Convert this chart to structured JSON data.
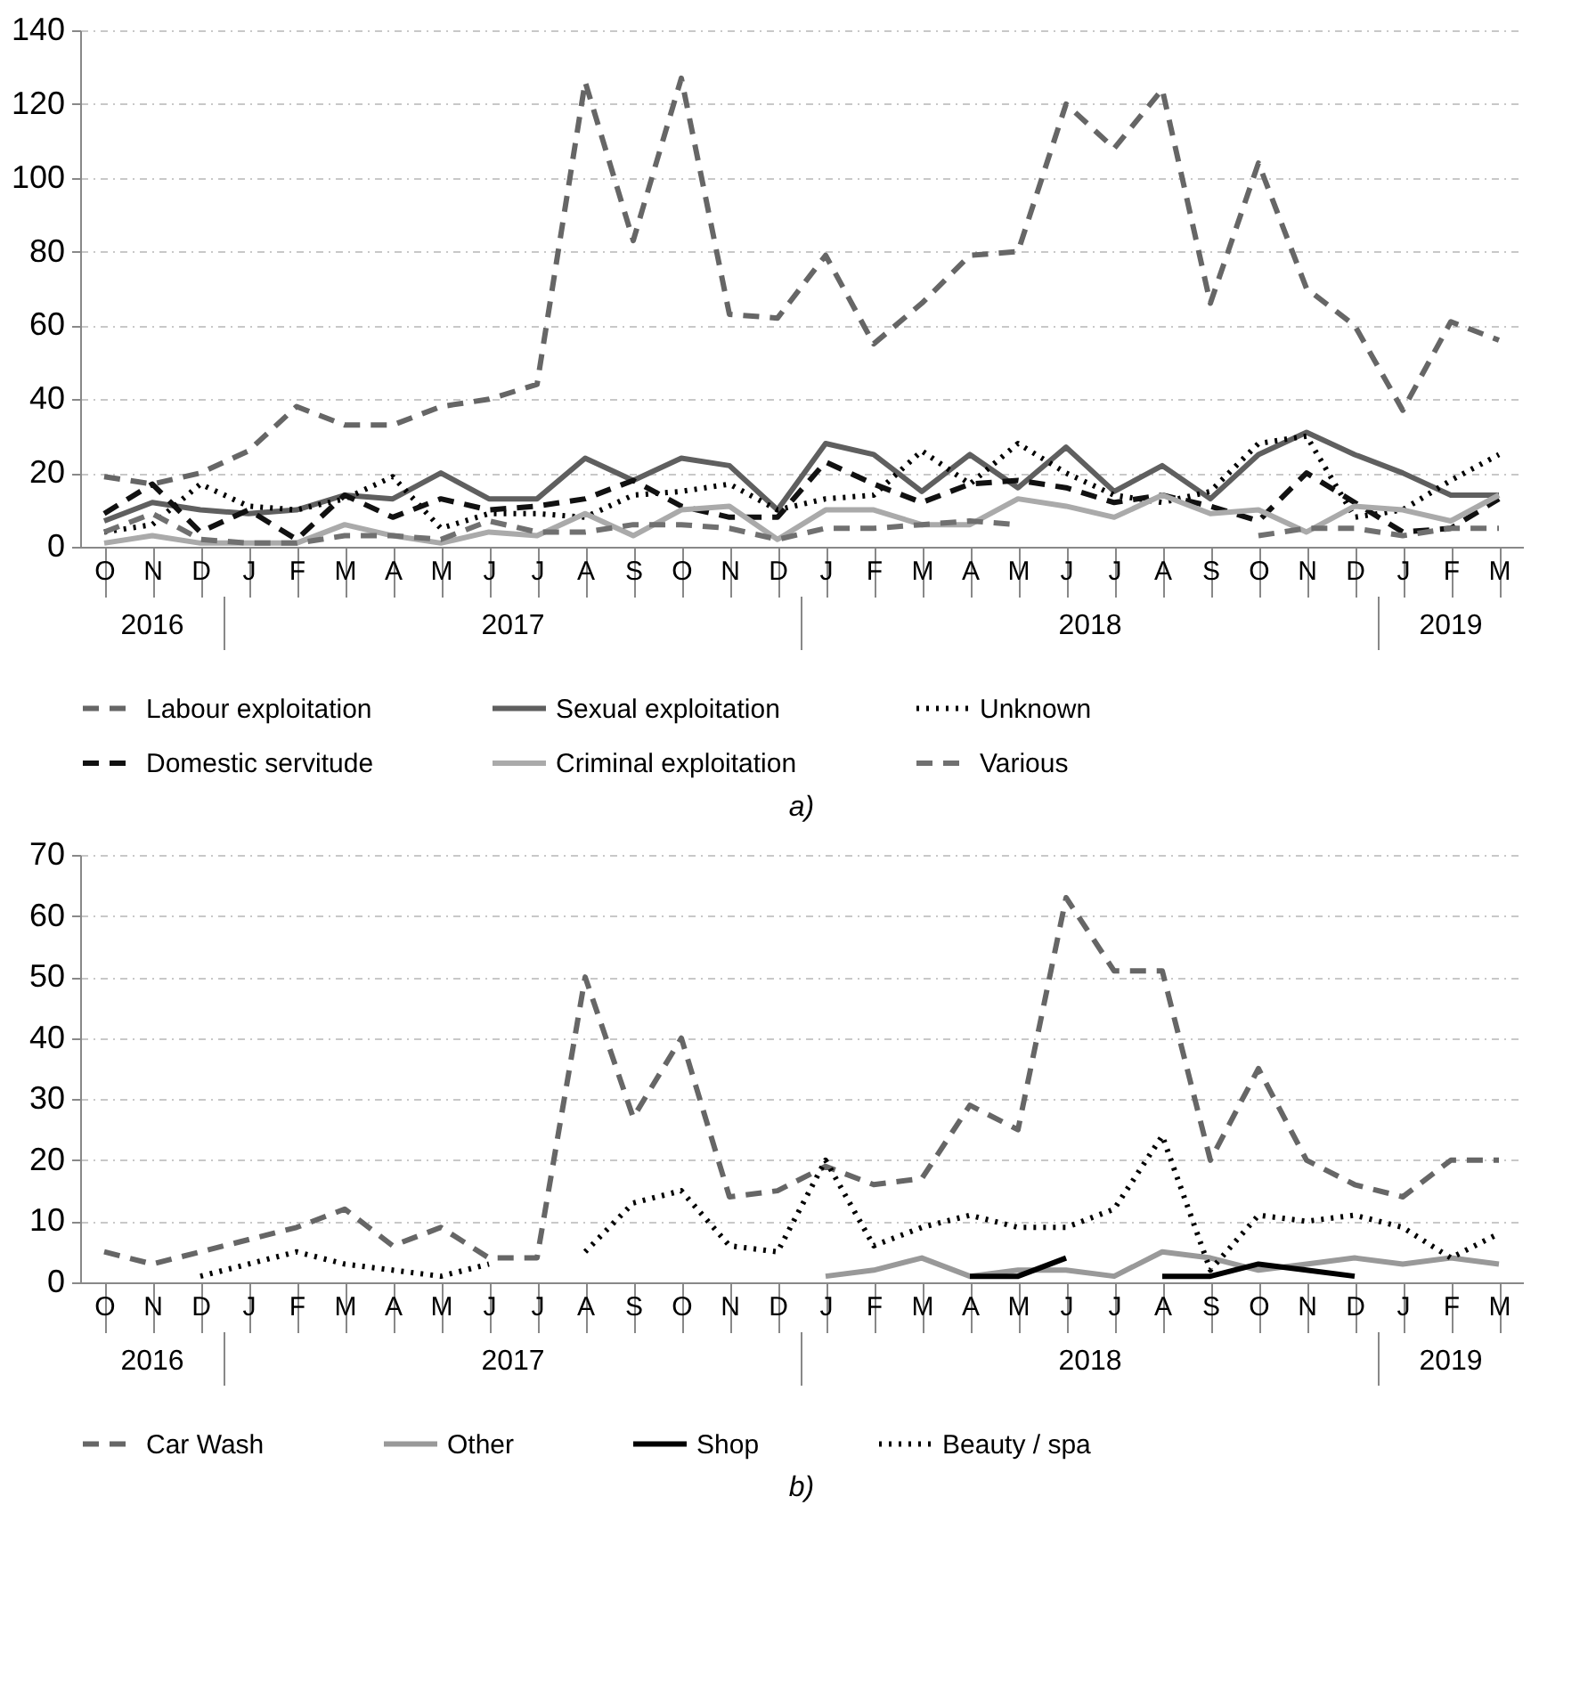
{
  "chart_data": [
    {
      "type": "line",
      "categories": [
        "O",
        "N",
        "D",
        "J",
        "F",
        "M",
        "A",
        "M",
        "J",
        "J",
        "A",
        "S",
        "O",
        "N",
        "D",
        "J",
        "F",
        "M",
        "A",
        "M",
        "J",
        "J",
        "A",
        "S",
        "O",
        "N",
        "D",
        "J",
        "F",
        "M"
      ],
      "ylim": [
        0,
        140
      ],
      "yticks": [
        0,
        20,
        40,
        60,
        80,
        100,
        120,
        140
      ],
      "grid": "y",
      "legend": "bottom",
      "series": [
        {
          "name": "Labour exploitation",
          "color": "#666666",
          "line_style": "dashed",
          "values": [
            19,
            17,
            20,
            26,
            38,
            33,
            33,
            38,
            40,
            44,
            126,
            83,
            127,
            63,
            62,
            79,
            55,
            66,
            79,
            80,
            120,
            108,
            124,
            66,
            104,
            70,
            60,
            37,
            61,
            56
          ]
        },
        {
          "name": "Sexual exploitation",
          "color": "#5f5f5f",
          "line_style": "solid",
          "values": [
            7,
            12,
            10,
            9,
            10,
            14,
            13,
            20,
            13,
            13,
            24,
            18,
            24,
            22,
            10,
            28,
            25,
            15,
            25,
            16,
            27,
            15,
            22,
            13,
            25,
            31,
            25,
            20,
            14,
            14
          ]
        },
        {
          "name": "Unknown",
          "color": "#000000",
          "line_style": "dotted",
          "values": [
            4,
            6,
            17,
            11,
            10,
            13,
            19,
            5,
            9,
            9,
            8,
            14,
            15,
            17,
            10,
            13,
            14,
            26,
            17,
            28,
            20,
            14,
            12,
            15,
            28,
            30,
            8,
            10,
            18,
            25
          ]
        },
        {
          "name": "Domestic servitude",
          "color": "#111111",
          "line_style": "dashed",
          "values": [
            9,
            17,
            4,
            10,
            2,
            14,
            8,
            13,
            10,
            11,
            13,
            18,
            11,
            8,
            8,
            23,
            17,
            12,
            17,
            18,
            16,
            12,
            14,
            11,
            7,
            20,
            12,
            4,
            5,
            13
          ]
        },
        {
          "name": "Criminal exploitation",
          "color": "#aaaaaa",
          "line_style": "solid",
          "values": [
            1,
            3,
            1,
            1,
            1,
            6,
            3,
            1,
            4,
            3,
            9,
            3,
            10,
            11,
            2,
            10,
            10,
            6,
            6,
            13,
            11,
            8,
            14,
            9,
            10,
            4,
            11,
            10,
            7,
            14
          ]
        },
        {
          "name": "Various",
          "color": "#707070",
          "line_style": "dashed",
          "values": [
            4,
            9,
            2,
            1,
            1,
            3,
            3,
            2,
            7,
            4,
            4,
            6,
            6,
            5,
            2,
            5,
            5,
            6,
            7,
            6,
            null,
            null,
            null,
            null,
            3,
            5,
            5,
            3,
            5,
            5
          ]
        }
      ],
      "annotations": [
        "2016",
        "2017",
        "2018",
        "2019",
        "a)"
      ]
    },
    {
      "type": "line",
      "categories": [
        "O",
        "N",
        "D",
        "J",
        "F",
        "M",
        "A",
        "M",
        "J",
        "J",
        "A",
        "S",
        "O",
        "N",
        "D",
        "J",
        "F",
        "M",
        "A",
        "M",
        "J",
        "J",
        "A",
        "S",
        "O",
        "N",
        "D",
        "J",
        "F",
        "M"
      ],
      "ylim": [
        0,
        70
      ],
      "yticks": [
        0,
        10,
        20,
        30,
        40,
        50,
        60,
        70
      ],
      "grid": "y",
      "legend": "bottom",
      "series": [
        {
          "name": "Car Wash",
          "color": "#666666",
          "line_style": "dashed",
          "values": [
            5,
            3,
            5,
            7,
            9,
            12,
            6,
            9,
            4,
            4,
            50,
            27,
            40,
            14,
            15,
            19,
            16,
            17,
            29,
            25,
            63,
            51,
            51,
            20,
            35,
            20,
            16,
            14,
            20,
            20
          ]
        },
        {
          "name": "Other",
          "color": "#999999",
          "line_style": "solid",
          "values": [
            null,
            null,
            null,
            null,
            null,
            null,
            null,
            null,
            null,
            null,
            null,
            null,
            null,
            null,
            null,
            1,
            2,
            4,
            1,
            2,
            2,
            1,
            5,
            4,
            2,
            3,
            4,
            3,
            4,
            3
          ]
        },
        {
          "name": "Shop",
          "color": "#000000",
          "line_style": "solid",
          "values": [
            null,
            null,
            null,
            null,
            null,
            null,
            null,
            null,
            null,
            null,
            null,
            null,
            null,
            null,
            null,
            null,
            null,
            null,
            1,
            1,
            4,
            null,
            1,
            1,
            3,
            2,
            1,
            null,
            null,
            null
          ]
        },
        {
          "name": "Beauty / spa",
          "color": "#000000",
          "line_style": "dotted",
          "values": [
            null,
            null,
            1,
            3,
            5,
            3,
            2,
            1,
            3,
            null,
            5,
            13,
            15,
            6,
            5,
            20,
            6,
            9,
            11,
            9,
            9,
            12,
            24,
            2,
            11,
            10,
            11,
            9,
            4,
            8
          ]
        }
      ],
      "annotations": [
        "2016",
        "2017",
        "2018",
        "2019",
        "b)"
      ]
    }
  ]
}
